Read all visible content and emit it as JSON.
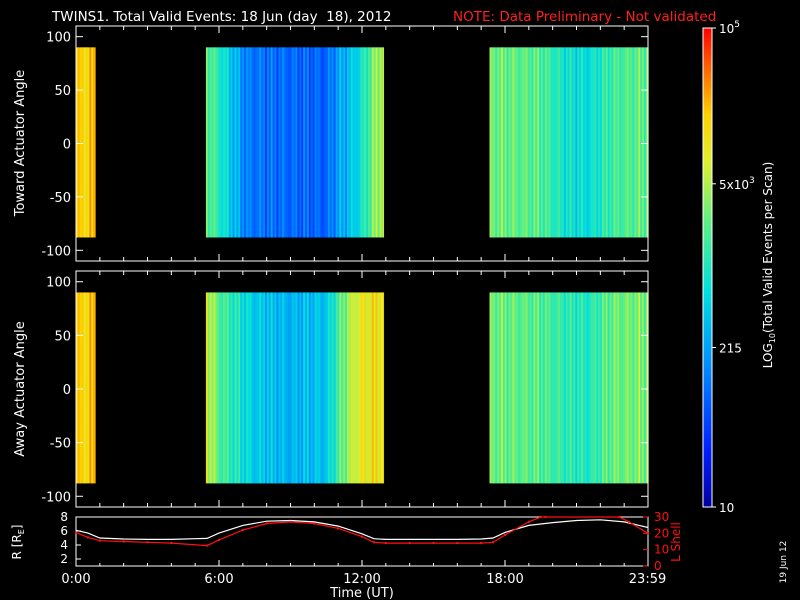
{
  "header": {
    "title": "TWINS1. Total Valid Events: 18 Jun (day  18), 2012",
    "note": "NOTE: Data Preliminary - Not validated"
  },
  "footer": {
    "date_stamp": "19 Jun 12"
  },
  "colors": {
    "note": "#ff2020",
    "lshell": "#ff1010",
    "radius": "#ffffff",
    "frame": "#ffffff"
  },
  "chart_data": [
    {
      "type": "heatmap",
      "ylabel": "Toward Actuator Angle",
      "ylim": [
        -110,
        110
      ],
      "yticks": [
        100,
        50,
        0,
        -50,
        -100
      ],
      "xlim_hours": [
        0,
        24
      ],
      "data_angle_range": [
        -88,
        90
      ],
      "coverage_hours": [
        [
          0.0,
          0.8
        ],
        [
          5.45,
          12.9
        ],
        [
          17.35,
          24.0
        ]
      ],
      "profile": [
        [
          0.0,
          4.2
        ],
        [
          0.8,
          4.2
        ],
        [
          5.5,
          3.4
        ],
        [
          5.8,
          3.2
        ],
        [
          6.3,
          2.8
        ],
        [
          7.2,
          2.05
        ],
        [
          9.0,
          1.95
        ],
        [
          10.5,
          1.9
        ],
        [
          11.0,
          2.3
        ],
        [
          11.5,
          2.55
        ],
        [
          12.0,
          2.9
        ],
        [
          12.5,
          3.5
        ],
        [
          12.9,
          3.8
        ],
        [
          17.35,
          3.45
        ],
        [
          19.5,
          3.3
        ],
        [
          20.5,
          2.9
        ],
        [
          21.5,
          2.8
        ],
        [
          22.5,
          3.2
        ],
        [
          24.0,
          3.4
        ]
      ]
    },
    {
      "type": "heatmap",
      "ylabel": "Away Actuator Angle",
      "ylim": [
        -110,
        110
      ],
      "yticks": [
        100,
        50,
        0,
        -50,
        -100
      ],
      "xlim_hours": [
        0,
        24
      ],
      "data_angle_range": [
        -88,
        90
      ],
      "coverage_hours": [
        [
          0.0,
          0.8
        ],
        [
          5.45,
          12.9
        ],
        [
          17.35,
          24.0
        ]
      ],
      "profile": [
        [
          0.0,
          4.2
        ],
        [
          0.8,
          4.2
        ],
        [
          5.5,
          3.9
        ],
        [
          6.0,
          3.3
        ],
        [
          7.5,
          2.65
        ],
        [
          9.0,
          2.45
        ],
        [
          10.5,
          2.6
        ],
        [
          11.0,
          3.2
        ],
        [
          11.5,
          3.7
        ],
        [
          12.0,
          4.0
        ],
        [
          12.9,
          4.1
        ],
        [
          17.35,
          3.45
        ],
        [
          19.5,
          3.3
        ],
        [
          20.5,
          3.1
        ],
        [
          21.5,
          3.0
        ],
        [
          22.5,
          3.4
        ],
        [
          24.0,
          3.5
        ]
      ]
    },
    {
      "type": "line",
      "ylabel_left": "R [R",
      "ylabel_left_sub": "E",
      "ylabel_left_end": "]",
      "ylabel_right": "L Shell",
      "ylim_left": [
        1,
        8
      ],
      "yticks_left": [
        8,
        6,
        4,
        2
      ],
      "ylim_right": [
        0,
        30
      ],
      "yticks_right": [
        30,
        20,
        10,
        0
      ],
      "xlabel": "Time (UT)",
      "xticks": [
        {
          "hour": 0.0,
          "label": "0:00"
        },
        {
          "hour": 6.0,
          "label": "6:00"
        },
        {
          "hour": 12.0,
          "label": "12:00"
        },
        {
          "hour": 18.0,
          "label": "18:00"
        },
        {
          "hour": 23.98,
          "label": "23:59"
        }
      ],
      "series": [
        {
          "key": "radius",
          "axis": "left",
          "x": [
            0.0,
            0.5,
            1.0,
            2.0,
            3.0,
            4.0,
            5.0,
            5.5,
            6.0,
            7.0,
            8.0,
            9.0,
            10.0,
            11.0,
            12.0,
            12.5,
            13.0,
            14.0,
            15.0,
            16.0,
            17.0,
            17.5,
            18.0,
            19.0,
            20.0,
            21.0,
            22.0,
            23.0,
            24.0
          ],
          "values": [
            6.1,
            5.7,
            5.0,
            4.85,
            4.8,
            4.8,
            4.9,
            4.95,
            5.7,
            6.8,
            7.4,
            7.5,
            7.3,
            6.7,
            5.6,
            4.9,
            4.8,
            4.8,
            4.8,
            4.8,
            4.85,
            5.0,
            5.8,
            6.8,
            7.2,
            7.5,
            7.6,
            7.3,
            6.5
          ]
        },
        {
          "key": "lshell",
          "axis": "right",
          "x": [
            0.0,
            0.5,
            1.0,
            2.0,
            3.0,
            4.0,
            5.5,
            6.0,
            7.0,
            8.0,
            9.0,
            10.0,
            11.0,
            12.0,
            12.5,
            13.0,
            14.0,
            15.0,
            16.0,
            17.0,
            17.5,
            18.0,
            19.0,
            19.5,
            19.7,
            22.8,
            23.2,
            24.0
          ],
          "values": [
            20.5,
            17.5,
            15.5,
            15.0,
            14.5,
            14.0,
            12.5,
            16.0,
            22.0,
            26.0,
            27.0,
            26.0,
            23.0,
            18.0,
            14.5,
            14.0,
            14.0,
            14.0,
            14.0,
            14.0,
            14.5,
            19.0,
            27.0,
            30.0,
            30.0,
            30.0,
            27.0,
            20.0
          ]
        }
      ]
    },
    {
      "type": "colorbar",
      "label_prefix": "LOG",
      "label_sub": "10",
      "label_suffix": "(Total Valid Events per Scan)",
      "log_range": [
        1.0,
        5.0
      ],
      "ticks": [
        {
          "value": 5.0,
          "mantissa": "",
          "base": "10",
          "exp": "5"
        },
        {
          "value": 3.699,
          "mantissa": "5x",
          "base": "10",
          "exp": "3"
        },
        {
          "value": 2.332,
          "mantissa": "215",
          "base": "",
          "exp": ""
        },
        {
          "value": 1.0,
          "mantissa": "10",
          "base": "",
          "exp": ""
        }
      ]
    }
  ]
}
